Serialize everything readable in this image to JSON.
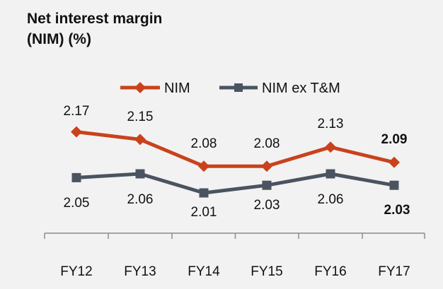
{
  "title_line1": "Net interest margin",
  "title_line2": "(NIM) (%)",
  "chart_data": {
    "type": "line",
    "categories": [
      "FY12",
      "FY13",
      "FY14",
      "FY15",
      "FY16",
      "FY17"
    ],
    "series": [
      {
        "name": "NIM",
        "values": [
          2.17,
          2.15,
          2.08,
          2.08,
          2.13,
          2.09
        ],
        "labels": [
          "2.17",
          "2.15",
          "2.08",
          "2.08",
          "2.13",
          "2.09"
        ],
        "bold_label_index": 5,
        "color": "#c9421c",
        "marker": "diamond"
      },
      {
        "name": "NIM ex T&M",
        "values": [
          2.05,
          2.06,
          2.01,
          2.03,
          2.06,
          2.03
        ],
        "labels": [
          "2.05",
          "2.06",
          "2.01",
          "2.03",
          "2.06",
          "2.03"
        ],
        "bold_label_index": 5,
        "color": "#4a5460",
        "marker": "square"
      }
    ],
    "legend_position": "top",
    "grid": false
  },
  "background_color": "#f2f2f2",
  "axis_color": "#8c8c8c"
}
